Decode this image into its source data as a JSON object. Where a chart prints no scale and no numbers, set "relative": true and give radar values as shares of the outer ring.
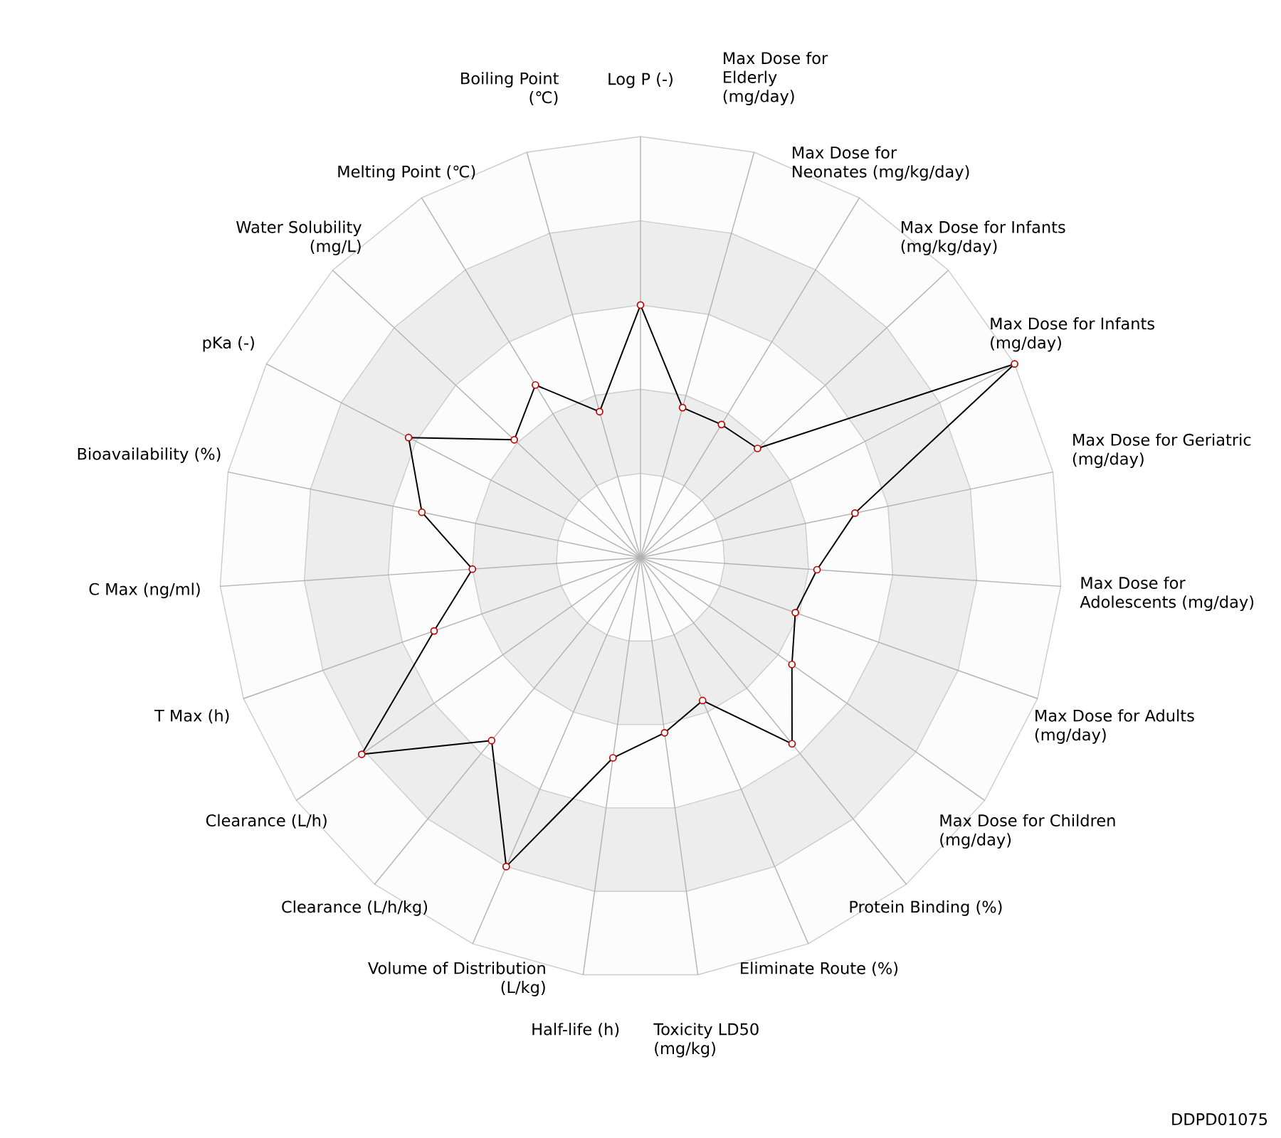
{
  "chart_data": {
    "type": "radar",
    "relative": true,
    "marker": "circle",
    "categories": [
      "Log P (-)",
      "Max Dose for Elderly (mg/day)",
      "Max Dose for Neonates (mg/kg/day)",
      "Max Dose for Infants (mg/kg/day)",
      "Max Dose for Infants (mg/day)",
      "Max Dose for Geriatric (mg/day)",
      "Max Dose for Adolescents (mg/day)",
      "Max Dose for Adults (mg/day)",
      "Max Dose for Children (mg/day)",
      "Protein Binding (%)",
      "Eliminate Route (%)",
      "Toxicity LD50 (mg/kg)",
      "Half-life (h)",
      "Volume of Distribution (L/kg)",
      "Clearance (L/h/kg)",
      "Clearance (L/h)",
      "T Max (h)",
      "C Max (ng/ml)",
      "Bioavailability (%)",
      "pKa (-)",
      "Water Solubility (mg/L)",
      "Melting Point (℃)",
      "Boiling Point (℃)"
    ],
    "series": [
      {
        "color": "#000000",
        "values": [
          0.6,
          0.37,
          0.37,
          0.38,
          1.0,
          0.52,
          0.42,
          0.39,
          0.44,
          0.57,
          0.37,
          0.42,
          0.48,
          0.8,
          0.56,
          0.81,
          0.52,
          0.4,
          0.53,
          0.62,
          0.41,
          0.48,
          0.36
        ]
      }
    ],
    "annotations": [
      "DDPD01075"
    ]
  }
}
